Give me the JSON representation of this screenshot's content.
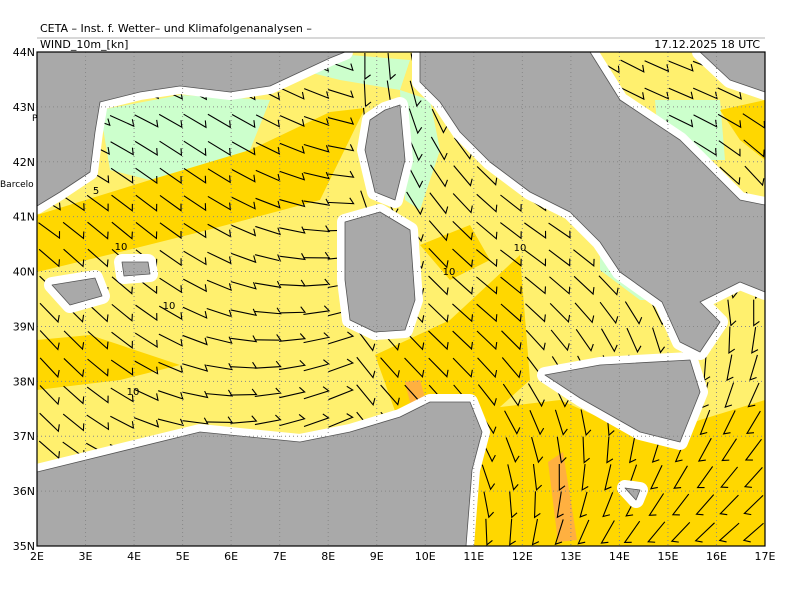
{
  "header": {
    "title": "CETA – Inst. f. Wetter– und Klimafolgenanalysen –",
    "field": "WIND_10m_[kn]",
    "time": "17.12.2025 18 UTC"
  },
  "map": {
    "lat_labels": [
      "44N",
      "43N",
      "42N",
      "41N",
      "40N",
      "39N",
      "38N",
      "37N",
      "36N",
      "35N"
    ],
    "lon_labels": [
      "2E",
      "3E",
      "4E",
      "5E",
      "6E",
      "7E",
      "8E",
      "9E",
      "10E",
      "11E",
      "12E",
      "13E",
      "14E",
      "15E",
      "16E",
      "17E"
    ],
    "place_labels": [
      "Barcelo",
      "P"
    ],
    "contour_labels": [
      "5",
      "10",
      "10",
      "10",
      "10",
      "10"
    ]
  }
}
